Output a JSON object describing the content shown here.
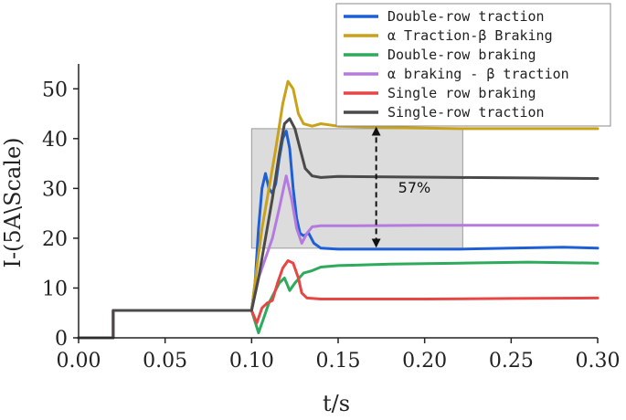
{
  "chart_data": {
    "type": "line",
    "xlabel": "t/s",
    "ylabel": "I-(5A\\Scale)",
    "xlim": [
      0,
      0.3
    ],
    "ylim": [
      0,
      55
    ],
    "xticks": [
      "0.00",
      "0.05",
      "0.10",
      "0.15",
      "0.20",
      "0.25",
      "0.30"
    ],
    "yticks": [
      "0",
      "10",
      "20",
      "30",
      "40",
      "50"
    ],
    "grid": false,
    "legend_position": "top-right",
    "annotation": {
      "text": "57%",
      "region": {
        "x0": 0.1,
        "x1": 0.222,
        "y0": 18,
        "y1": 42
      },
      "arrow": {
        "x": 0.172,
        "y_from": 19,
        "y_to": 41.5
      }
    },
    "series": [
      {
        "name": "Double-row traction",
        "color": "#1f5fd6",
        "points": [
          [
            0,
            0
          ],
          [
            0.02,
            0
          ],
          [
            0.02,
            5.5
          ],
          [
            0.1,
            5.5
          ],
          [
            0.102,
            11
          ],
          [
            0.104,
            22
          ],
          [
            0.106,
            30
          ],
          [
            0.108,
            33
          ],
          [
            0.11,
            30
          ],
          [
            0.112,
            29
          ],
          [
            0.114,
            31
          ],
          [
            0.116,
            36
          ],
          [
            0.118,
            40
          ],
          [
            0.12,
            41.5
          ],
          [
            0.122,
            38
          ],
          [
            0.124,
            30
          ],
          [
            0.126,
            24
          ],
          [
            0.128,
            21
          ],
          [
            0.13,
            20.5
          ],
          [
            0.133,
            21
          ],
          [
            0.136,
            19
          ],
          [
            0.14,
            18
          ],
          [
            0.15,
            17.8
          ],
          [
            0.17,
            17.8
          ],
          [
            0.2,
            17.8
          ],
          [
            0.22,
            17.8
          ],
          [
            0.25,
            18
          ],
          [
            0.28,
            18.2
          ],
          [
            0.3,
            18
          ]
        ]
      },
      {
        "name": "α Traction-β Braking",
        "color": "#c9a21a",
        "points": [
          [
            0,
            0
          ],
          [
            0.02,
            0
          ],
          [
            0.02,
            5.5
          ],
          [
            0.1,
            5.5
          ],
          [
            0.103,
            14
          ],
          [
            0.106,
            22
          ],
          [
            0.11,
            30
          ],
          [
            0.114,
            38
          ],
          [
            0.118,
            47
          ],
          [
            0.121,
            51.5
          ],
          [
            0.124,
            50
          ],
          [
            0.127,
            45
          ],
          [
            0.13,
            43
          ],
          [
            0.135,
            42.5
          ],
          [
            0.14,
            43
          ],
          [
            0.15,
            42.5
          ],
          [
            0.18,
            42.2
          ],
          [
            0.22,
            42
          ],
          [
            0.26,
            42
          ],
          [
            0.3,
            42
          ]
        ]
      },
      {
        "name": "Double-row braking",
        "color": "#2eaa5c",
        "points": [
          [
            0,
            0
          ],
          [
            0.02,
            0
          ],
          [
            0.02,
            5.5
          ],
          [
            0.1,
            5.5
          ],
          [
            0.104,
            1
          ],
          [
            0.107,
            4
          ],
          [
            0.11,
            7
          ],
          [
            0.113,
            9
          ],
          [
            0.116,
            11
          ],
          [
            0.119,
            12
          ],
          [
            0.122,
            9.5
          ],
          [
            0.125,
            11
          ],
          [
            0.13,
            13
          ],
          [
            0.135,
            13.5
          ],
          [
            0.14,
            14.2
          ],
          [
            0.15,
            14.5
          ],
          [
            0.18,
            14.8
          ],
          [
            0.22,
            15
          ],
          [
            0.26,
            15.2
          ],
          [
            0.3,
            15
          ]
        ]
      },
      {
        "name": "α braking - β traction",
        "color": "#b57ae0",
        "points": [
          [
            0,
            0
          ],
          [
            0.02,
            0
          ],
          [
            0.02,
            5.5
          ],
          [
            0.1,
            5.5
          ],
          [
            0.104,
            12
          ],
          [
            0.108,
            16
          ],
          [
            0.112,
            20
          ],
          [
            0.116,
            26
          ],
          [
            0.12,
            32.5
          ],
          [
            0.123,
            28
          ],
          [
            0.126,
            22
          ],
          [
            0.129,
            19
          ],
          [
            0.132,
            21
          ],
          [
            0.135,
            22.3
          ],
          [
            0.14,
            22.5
          ],
          [
            0.16,
            22.5
          ],
          [
            0.2,
            22.6
          ],
          [
            0.25,
            22.6
          ],
          [
            0.3,
            22.6
          ]
        ]
      },
      {
        "name": "Single row braking",
        "color": "#e84545",
        "points": [
          [
            0,
            0
          ],
          [
            0.02,
            0
          ],
          [
            0.02,
            5.5
          ],
          [
            0.1,
            5.5
          ],
          [
            0.103,
            3
          ],
          [
            0.106,
            6
          ],
          [
            0.109,
            7
          ],
          [
            0.112,
            7.5
          ],
          [
            0.115,
            11
          ],
          [
            0.118,
            14
          ],
          [
            0.121,
            15.5
          ],
          [
            0.124,
            15
          ],
          [
            0.127,
            12
          ],
          [
            0.129,
            9
          ],
          [
            0.132,
            8
          ],
          [
            0.14,
            7.8
          ],
          [
            0.2,
            7.8
          ],
          [
            0.25,
            7.9
          ],
          [
            0.3,
            8
          ]
        ]
      },
      {
        "name": "Single-row traction",
        "color": "#4a4a4a",
        "points": [
          [
            0,
            0
          ],
          [
            0.02,
            0
          ],
          [
            0.02,
            5.5
          ],
          [
            0.1,
            5.5
          ],
          [
            0.104,
            12
          ],
          [
            0.108,
            20
          ],
          [
            0.112,
            28
          ],
          [
            0.116,
            37
          ],
          [
            0.119,
            43
          ],
          [
            0.122,
            44
          ],
          [
            0.125,
            42
          ],
          [
            0.128,
            38
          ],
          [
            0.131,
            34
          ],
          [
            0.135,
            32.5
          ],
          [
            0.14,
            32.2
          ],
          [
            0.15,
            32.4
          ],
          [
            0.18,
            32.3
          ],
          [
            0.22,
            32.2
          ],
          [
            0.26,
            32.1
          ],
          [
            0.3,
            32
          ]
        ]
      }
    ]
  }
}
